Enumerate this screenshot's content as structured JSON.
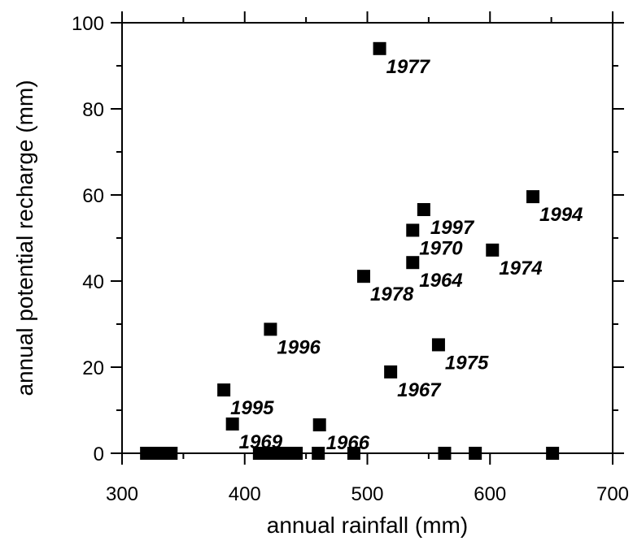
{
  "chart_data": {
    "type": "scatter",
    "title": "",
    "xlabel": "annual rainfall (mm)",
    "ylabel": "annual potential recharge  (mm)",
    "xlim": [
      300,
      700
    ],
    "ylim": [
      0,
      100
    ],
    "x_ticks": [
      300,
      400,
      500,
      600,
      700
    ],
    "y_ticks": [
      0,
      20,
      40,
      60,
      80,
      100
    ],
    "grid": false,
    "marker": "square",
    "marker_color": "#000000",
    "points": [
      {
        "x": 510,
        "y": 94,
        "label": "1977"
      },
      {
        "x": 635,
        "y": 59.6,
        "label": "1994"
      },
      {
        "x": 546,
        "y": 56.6,
        "label": "1997"
      },
      {
        "x": 537,
        "y": 51.8,
        "label": "1970"
      },
      {
        "x": 602,
        "y": 47.2,
        "label": "1974"
      },
      {
        "x": 537,
        "y": 44.3,
        "label": "1964"
      },
      {
        "x": 497,
        "y": 41.1,
        "label": "1978"
      },
      {
        "x": 421,
        "y": 28.8,
        "label": "1996"
      },
      {
        "x": 558,
        "y": 25.2,
        "label": "1975"
      },
      {
        "x": 519,
        "y": 18.9,
        "label": "1967"
      },
      {
        "x": 383,
        "y": 14.7,
        "label": "1995"
      },
      {
        "x": 390,
        "y": 6.8,
        "label": "1969"
      },
      {
        "x": 461,
        "y": 6.6,
        "label": "1966"
      },
      {
        "x": 320,
        "y": 0,
        "label": ""
      },
      {
        "x": 326,
        "y": 0,
        "label": ""
      },
      {
        "x": 332,
        "y": 0,
        "label": ""
      },
      {
        "x": 336,
        "y": 0,
        "label": ""
      },
      {
        "x": 340,
        "y": 0,
        "label": ""
      },
      {
        "x": 412,
        "y": 0,
        "label": ""
      },
      {
        "x": 418,
        "y": 0,
        "label": ""
      },
      {
        "x": 424,
        "y": 0,
        "label": ""
      },
      {
        "x": 430,
        "y": 0,
        "label": ""
      },
      {
        "x": 436,
        "y": 0,
        "label": ""
      },
      {
        "x": 442,
        "y": 0,
        "label": ""
      },
      {
        "x": 460,
        "y": 0,
        "label": ""
      },
      {
        "x": 489,
        "y": 0,
        "label": ""
      },
      {
        "x": 563,
        "y": 0,
        "label": ""
      },
      {
        "x": 588,
        "y": 0,
        "label": ""
      },
      {
        "x": 651,
        "y": 0,
        "label": ""
      }
    ]
  }
}
